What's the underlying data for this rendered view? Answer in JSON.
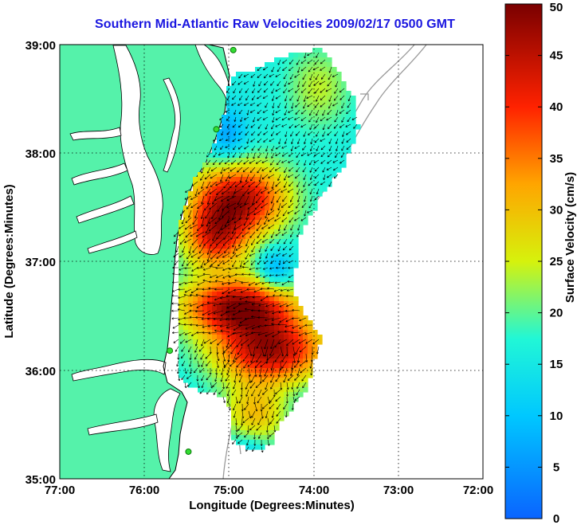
{
  "title": "Southern Mid-Atlantic Raw Velocities 2009/02/17 0500 GMT",
  "map": {
    "xlabel": "Longitude (Degrees:Minutes)",
    "ylabel": "Latitude (Degrees:Minutes)",
    "lon_range": [
      -77,
      -72
    ],
    "lat_range": [
      35,
      39
    ],
    "lon_ticks": [
      "77:00",
      "76:00",
      "75:00",
      "74:00",
      "73:00",
      "72:00"
    ],
    "lat_ticks": [
      "39:00",
      "38:00",
      "37:00",
      "36:00",
      "35:00"
    ],
    "land_color": "#55f2aa",
    "ocean_color": "#ffffff",
    "grid": "dotted"
  },
  "colorbar": {
    "label": "Surface Velocity (cm/s)",
    "min": 0,
    "max": 50,
    "ticks": [
      "0",
      "5",
      "10",
      "15",
      "20",
      "25",
      "30",
      "35",
      "40",
      "45",
      "50"
    ],
    "colormap": "jet"
  },
  "stations": [
    {
      "lon": -74.95,
      "lat": 38.95
    },
    {
      "lon": -75.15,
      "lat": 38.22
    },
    {
      "lon": -75.7,
      "lat": 36.18
    },
    {
      "lon": -75.48,
      "lat": 35.25
    }
  ]
}
